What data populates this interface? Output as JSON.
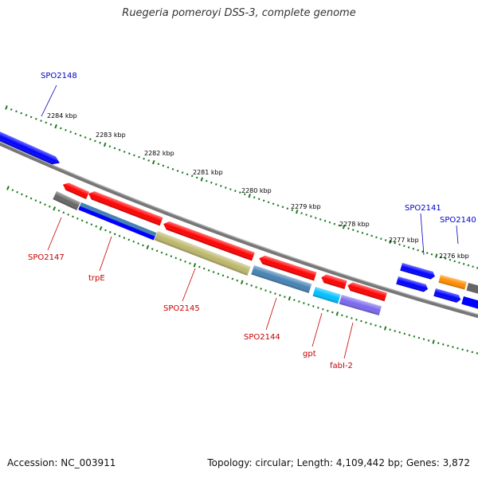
{
  "title": "Ruegeria pomeroyi DSS-3, complete genome",
  "footer": {
    "accession": "Accession: NC_003911",
    "stats": "Topology: circular; Length: 4,109,442 bp; Genes: 3,872"
  },
  "scale_labels": [
    "2284 kbp",
    "2283 kbp",
    "2282 kbp",
    "2281 kbp",
    "2280 kbp",
    "2279 kbp",
    "2278 kbp",
    "2277 kbp",
    "2276 kbp"
  ],
  "gene_labels": {
    "SPO2148": "SPO2148",
    "SPO2141": "SPO2141",
    "SPO2140": "SPO2140",
    "SPO2147": "SPO2147",
    "trpE": "trpE",
    "SPO2145": "SPO2145",
    "SPO2144": "SPO2144",
    "gpt": "gpt",
    "fabI-2": "fabI-2"
  },
  "colors": {
    "backbone": "#8a8a8a",
    "ticks": "#1f7a1f",
    "forward_label": "#0000c8",
    "reverse_label": "#c80000",
    "red_gene": "#ff0000",
    "blue_gene": "#0000ff",
    "gray_gene": "#666666",
    "steel_gene": "#4682b4",
    "khaki_gene": "#bdb76b",
    "cyan_gene": "#00bfff",
    "purple_gene": "#7b68ee",
    "orange_gene": "#ff8c00"
  }
}
